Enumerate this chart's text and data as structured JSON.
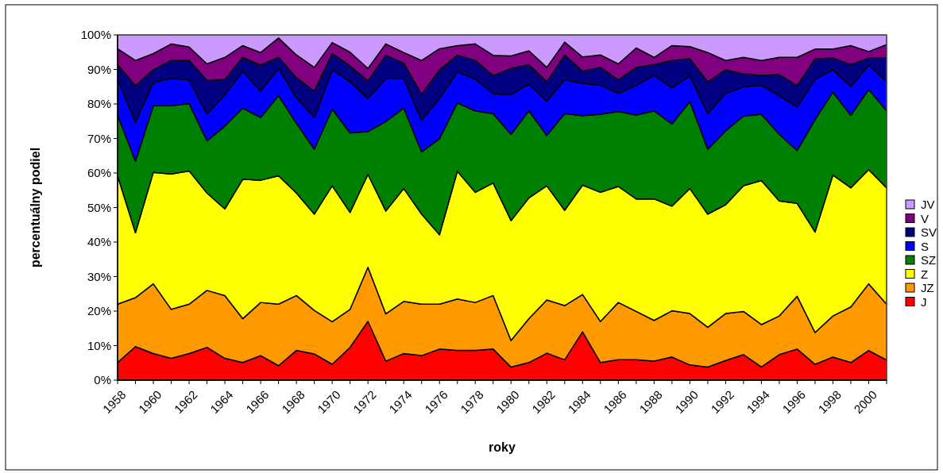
{
  "chart_data": {
    "type": "area",
    "stacked": true,
    "xlabel": "roky",
    "ylabel": "percentuálny podiel",
    "legend": "right",
    "categories": [
      "1958",
      null,
      "1960",
      null,
      "1962",
      null,
      "1964",
      null,
      "1966",
      null,
      "1968",
      null,
      "1970",
      null,
      "1972",
      null,
      "1974",
      null,
      "1976",
      null,
      "1978",
      null,
      "1980",
      null,
      "1982",
      null,
      "1984",
      null,
      "1986",
      null,
      "1988",
      null,
      "1990",
      null,
      "1992",
      null,
      "1994",
      null,
      "1996",
      null,
      "1998",
      null,
      "2000",
      null
    ],
    "ylim": [
      0,
      100
    ],
    "yticks": [
      {
        "value": 0,
        "label": "0%"
      },
      {
        "value": 10,
        "label": "10%"
      },
      {
        "value": 20,
        "label": "20%"
      },
      {
        "value": 30,
        "label": "30%"
      },
      {
        "value": 40,
        "label": "40%"
      },
      {
        "value": 50,
        "label": "50%"
      },
      {
        "value": 60,
        "label": "60%"
      },
      {
        "value": 70,
        "label": "70%"
      },
      {
        "value": 80,
        "label": "80%"
      },
      {
        "value": 90,
        "label": "90%"
      },
      {
        "value": 100,
        "label": "100%"
      }
    ],
    "series": [
      {
        "name": "J",
        "color": "#ff0000",
        "values": [
          5.1,
          9.7,
          7.7,
          6.3,
          7.7,
          9.5,
          6.3,
          5.1,
          7.1,
          4.2,
          8.6,
          7.6,
          4.6,
          9.5,
          17.0,
          5.5,
          7.7,
          7.1,
          9.0,
          8.6,
          8.6,
          9.0,
          3.8,
          5.1,
          7.8,
          5.9,
          14.0,
          5.1,
          5.9,
          5.9,
          5.5,
          6.7,
          4.4,
          3.8,
          5.7,
          7.4,
          3.8,
          7.4,
          9.0,
          4.6,
          6.7,
          5.1,
          8.6,
          5.8
        ]
      },
      {
        "name": "JZ",
        "color": "#ff9900",
        "values": [
          16.9,
          14.2,
          20.2,
          14.2,
          14.3,
          16.5,
          18.2,
          12.7,
          15.4,
          17.8,
          15.9,
          12.6,
          12.3,
          11.0,
          15.7,
          13.7,
          15.1,
          14.9,
          13.0,
          14.9,
          13.9,
          15.5,
          7.7,
          12.7,
          15.4,
          15.7,
          10.8,
          11.9,
          16.6,
          14.0,
          11.8,
          13.4,
          14.9,
          11.5,
          13.6,
          12.5,
          12.3,
          11.2,
          15.3,
          9.2,
          11.9,
          16.1,
          19.3,
          16.2
        ]
      },
      {
        "name": "Z",
        "color": "#ffff00",
        "values": [
          37.2,
          18.8,
          32.3,
          39.2,
          38.6,
          28.2,
          25.1,
          40.4,
          35.4,
          37.2,
          29.7,
          27.9,
          39.4,
          28.1,
          26.9,
          29.8,
          32.7,
          26.1,
          20.1,
          37.0,
          31.9,
          32.6,
          34.7,
          35.0,
          33.1,
          27.6,
          31.7,
          37.4,
          33.6,
          32.6,
          35.2,
          30.3,
          36.2,
          32.8,
          31.5,
          36.4,
          41.7,
          33.3,
          26.9,
          29.1,
          40.8,
          34.5,
          33.1,
          33.7
        ]
      },
      {
        "name": "SZ",
        "color": "#008000",
        "values": [
          17.6,
          20.7,
          19.3,
          19.8,
          19.5,
          15.1,
          24.0,
          20.6,
          18.2,
          23.2,
          20.2,
          18.8,
          22.2,
          23.0,
          12.4,
          25.9,
          23.3,
          18.0,
          27.8,
          19.8,
          23.6,
          20.1,
          25.0,
          25.2,
          14.6,
          28.0,
          20.1,
          22.6,
          21.7,
          24.3,
          25.5,
          23.8,
          25.2,
          18.8,
          21.4,
          20.2,
          19.2,
          19.3,
          15.3,
          32.6,
          24.0,
          21.0,
          23.2,
          22.3
        ]
      },
      {
        "name": "S",
        "color": "#0000ff",
        "values": [
          10.4,
          11.3,
          6.7,
          7.9,
          6.9,
          7.8,
          9.1,
          10.7,
          7.6,
          7.9,
          7.4,
          9.2,
          11.4,
          14.8,
          9.6,
          12.4,
          8.5,
          9.2,
          11.7,
          9.0,
          9.2,
          5.8,
          11.5,
          7.8,
          9.9,
          9.8,
          9.4,
          8.4,
          5.3,
          8.6,
          10.3,
          10.5,
          7.5,
          10.3,
          10.9,
          8.5,
          8.4,
          11.2,
          12.6,
          11.7,
          6.5,
          8.3,
          7.1,
          8.5
        ]
      },
      {
        "name": "SV",
        "color": "#000080",
        "values": [
          4.2,
          10.6,
          3.7,
          5.2,
          5.6,
          9.7,
          4.4,
          4.0,
          7.5,
          3.2,
          5.8,
          7.6,
          4.7,
          4.6,
          5.1,
          6.8,
          4.5,
          7.5,
          8.3,
          4.8,
          5.4,
          5.2,
          7.6,
          5.6,
          5.6,
          7.1,
          3.5,
          5.2,
          3.9,
          5.2,
          3.1,
          7.9,
          4.9,
          9.2,
          6.8,
          3.7,
          2.9,
          6.1,
          6.2,
          5.9,
          3.4,
          6.4,
          2.0,
          6.8
        ]
      },
      {
        "name": "V",
        "color": "#800080",
        "values": [
          4.6,
          7.3,
          4.7,
          4.8,
          3.9,
          4.8,
          6.4,
          3.4,
          3.7,
          5.6,
          6.6,
          6.9,
          3.2,
          4.0,
          3.6,
          3.3,
          3.1,
          9.8,
          6.1,
          2.8,
          4.8,
          5.9,
          3.6,
          4.0,
          4.2,
          3.8,
          4.1,
          3.6,
          4.6,
          5.6,
          2.1,
          4.3,
          3.5,
          8.5,
          2.7,
          4.8,
          4.3,
          5.0,
          8.2,
          2.8,
          2.6,
          5.5,
          1.9,
          3.9
        ]
      },
      {
        "name": "JV",
        "color": "#cc99ff",
        "values": [
          4.0,
          7.4,
          5.4,
          2.6,
          3.5,
          8.4,
          6.5,
          3.1,
          5.1,
          0.9,
          5.8,
          9.4,
          2.2,
          5.0,
          9.7,
          2.6,
          5.1,
          7.4,
          4.0,
          3.1,
          2.6,
          5.9,
          6.1,
          4.6,
          9.4,
          2.1,
          6.4,
          5.8,
          8.4,
          3.8,
          6.5,
          3.1,
          3.4,
          5.1,
          7.4,
          6.5,
          7.4,
          6.5,
          6.5,
          4.1,
          4.1,
          3.1,
          4.8,
          2.8
        ]
      }
    ]
  }
}
